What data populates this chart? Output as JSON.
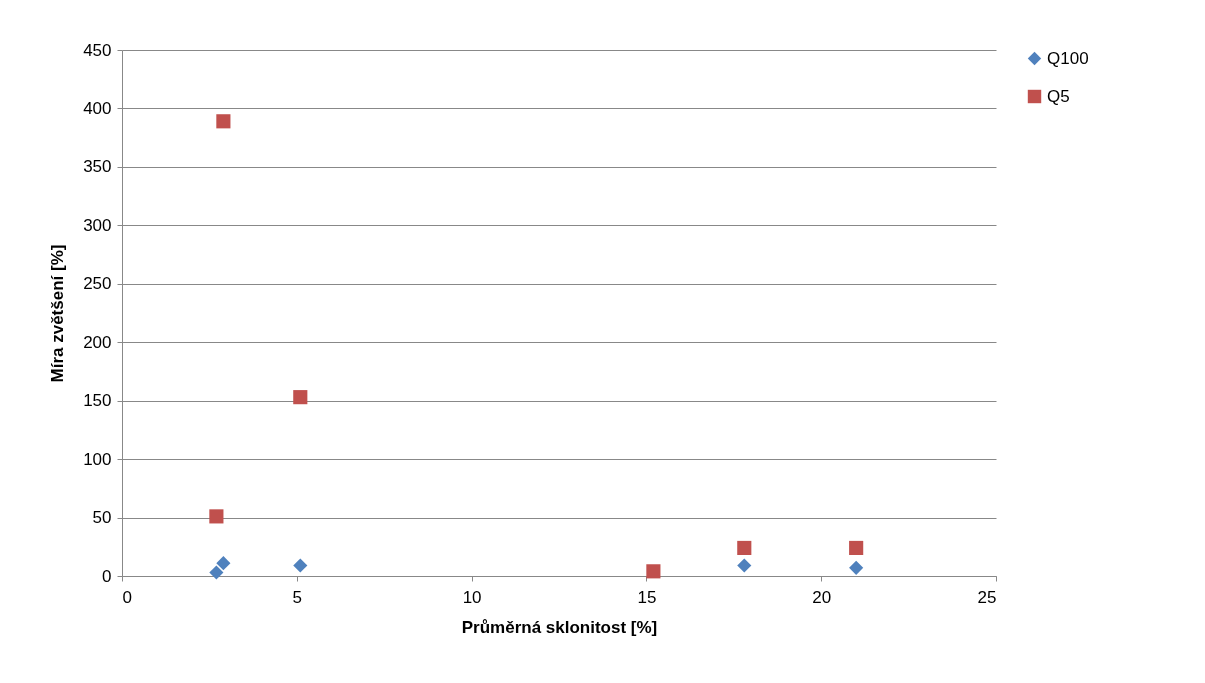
{
  "chart_data": {
    "type": "scatter",
    "xlabel": "Průměrná sklonitost [%]",
    "ylabel": "Míra zvětšení [%]",
    "x": [
      2.7,
      2.9,
      5.1,
      15.2,
      17.8,
      21.0
    ],
    "series": [
      {
        "name": "Q100",
        "color": "#4f81bd",
        "marker": "diamond",
        "values": [
          3,
          11,
          9,
          null,
          9,
          7
        ]
      },
      {
        "name": "Q5",
        "color": "#c0504d",
        "marker": "square",
        "values": [
          51,
          389,
          153,
          4,
          24,
          24
        ]
      }
    ],
    "xlim": [
      0,
      25
    ],
    "xticks": [
      0,
      5,
      10,
      15,
      20,
      25
    ],
    "ylim": [
      0,
      450
    ],
    "yticks": [
      0,
      50,
      100,
      150,
      200,
      250,
      300,
      350,
      400,
      450
    ],
    "grid": "y",
    "legend": "right"
  }
}
